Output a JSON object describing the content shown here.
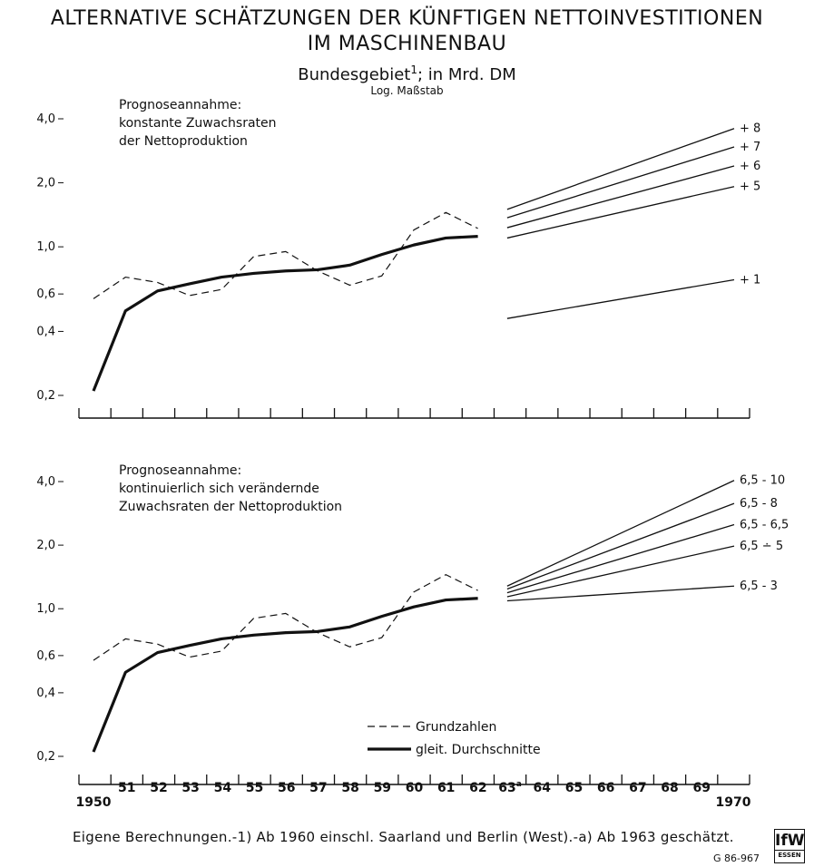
{
  "title": {
    "line1": "ALTERNATIVE SCHÄTZUNGEN DER KÜNFTIGEN NETTOINVESTITIONEN",
    "line2": "IM MASCHINENBAU",
    "subtitle_main": "Bundesgebiet",
    "subtitle_sup": "1",
    "subtitle_rest": "; in Mrd. DM",
    "scale_note": "Log. Maßstab"
  },
  "footnote": "Eigene Berechnungen.-1) Ab 1960 einschl. Saarland und Berlin (West).-a) Ab 1963 geschätzt.",
  "code": "G 86-967",
  "logo": {
    "main": "IfW",
    "sub": "ESSEN"
  },
  "chart_data": [
    {
      "type": "line",
      "scale": "log",
      "annotation": [
        "Prognoseannahme:",
        "konstante Zuwachsraten",
        "der Nettoproduktion"
      ],
      "y_ticks": [
        {
          "v": 0.2,
          "label": "0,2"
        },
        {
          "v": 0.4,
          "label": "0,4"
        },
        {
          "v": 0.6,
          "label": "0,6"
        },
        {
          "v": 1.0,
          "label": "1,0"
        },
        {
          "v": 2.0,
          "label": "2,0"
        },
        {
          "v": 4.0,
          "label": "4,0"
        }
      ],
      "ylim": [
        0.16,
        4.2
      ],
      "x_ticks": [],
      "grundzahlen": [
        [
          1950,
          0.57
        ],
        [
          1951,
          0.72
        ],
        [
          1952,
          0.68
        ],
        [
          1953,
          0.59
        ],
        [
          1954,
          0.63
        ],
        [
          1955,
          0.9
        ],
        [
          1956,
          0.95
        ],
        [
          1957,
          0.77
        ],
        [
          1958,
          0.66
        ],
        [
          1959,
          0.73
        ],
        [
          1960,
          1.2
        ],
        [
          1961,
          1.45
        ],
        [
          1962,
          1.22
        ]
      ],
      "gleitende_durchschnitte": [
        [
          1950,
          0.21
        ],
        [
          1951,
          0.5
        ],
        [
          1952,
          0.62
        ],
        [
          1953,
          0.67
        ],
        [
          1954,
          0.72
        ],
        [
          1955,
          0.75
        ],
        [
          1956,
          0.77
        ],
        [
          1957,
          0.78
        ],
        [
          1958,
          0.82
        ],
        [
          1959,
          0.92
        ],
        [
          1960,
          1.02
        ],
        [
          1961,
          1.1
        ],
        [
          1962,
          1.12
        ]
      ],
      "projections": [
        {
          "label": "+ 8",
          "start": [
            1963,
            1.5
          ],
          "end": [
            1970,
            3.6
          ]
        },
        {
          "label": "+ 7",
          "start": [
            1963,
            1.37
          ],
          "end": [
            1970,
            2.95
          ]
        },
        {
          "label": "+ 6",
          "start": [
            1963,
            1.23
          ],
          "end": [
            1970,
            2.4
          ]
        },
        {
          "label": "+ 5",
          "start": [
            1963,
            1.1
          ],
          "end": [
            1970,
            1.92
          ]
        },
        {
          "label": "+ 1",
          "start": [
            1963,
            0.46
          ],
          "end": [
            1970,
            0.7
          ]
        }
      ]
    },
    {
      "type": "line",
      "scale": "log",
      "annotation": [
        "Prognoseannahme:",
        "kontinuierlich sich verändernde",
        "Zuwachsraten der Nettoproduktion"
      ],
      "y_ticks": [
        {
          "v": 0.2,
          "label": "0,2"
        },
        {
          "v": 0.4,
          "label": "0,4"
        },
        {
          "v": 0.6,
          "label": "0,6"
        },
        {
          "v": 1.0,
          "label": "1,0"
        },
        {
          "v": 2.0,
          "label": "2,0"
        },
        {
          "v": 4.0,
          "label": "4,0"
        }
      ],
      "ylim": [
        0.16,
        4.2
      ],
      "x_ticks": [
        {
          "label": "1950",
          "pos": 1950
        },
        {
          "label": "51",
          "pos": 1951
        },
        {
          "label": "52",
          "pos": 1952
        },
        {
          "label": "53",
          "pos": 1953
        },
        {
          "label": "54",
          "pos": 1954
        },
        {
          "label": "55",
          "pos": 1955
        },
        {
          "label": "56",
          "pos": 1956
        },
        {
          "label": "57",
          "pos": 1957
        },
        {
          "label": "58",
          "pos": 1958
        },
        {
          "label": "59",
          "pos": 1959
        },
        {
          "label": "60",
          "pos": 1960
        },
        {
          "label": "61",
          "pos": 1961
        },
        {
          "label": "62",
          "pos": 1962
        },
        {
          "label": "63",
          "sup": "a",
          "pos": 1963
        },
        {
          "label": "64",
          "pos": 1964
        },
        {
          "label": "65",
          "pos": 1965
        },
        {
          "label": "66",
          "pos": 1966
        },
        {
          "label": "67",
          "pos": 1967
        },
        {
          "label": "68",
          "pos": 1968
        },
        {
          "label": "69",
          "pos": 1969
        },
        {
          "label": "1970",
          "pos": 1970
        }
      ],
      "grundzahlen": [
        [
          1950,
          0.57
        ],
        [
          1951,
          0.72
        ],
        [
          1952,
          0.68
        ],
        [
          1953,
          0.59
        ],
        [
          1954,
          0.63
        ],
        [
          1955,
          0.9
        ],
        [
          1956,
          0.95
        ],
        [
          1957,
          0.77
        ],
        [
          1958,
          0.66
        ],
        [
          1959,
          0.73
        ],
        [
          1960,
          1.2
        ],
        [
          1961,
          1.45
        ],
        [
          1962,
          1.22
        ]
      ],
      "gleitende_durchschnitte": [
        [
          1950,
          0.21
        ],
        [
          1951,
          0.5
        ],
        [
          1952,
          0.62
        ],
        [
          1953,
          0.67
        ],
        [
          1954,
          0.72
        ],
        [
          1955,
          0.75
        ],
        [
          1956,
          0.77
        ],
        [
          1957,
          0.78
        ],
        [
          1958,
          0.82
        ],
        [
          1959,
          0.92
        ],
        [
          1960,
          1.02
        ],
        [
          1961,
          1.1
        ],
        [
          1962,
          1.12
        ]
      ],
      "projections": [
        {
          "label": "6,5 - 10",
          "start": [
            1963,
            1.28
          ],
          "end": [
            1970,
            4.05
          ]
        },
        {
          "label": "6,5 - 8",
          "start": [
            1963,
            1.24
          ],
          "end": [
            1970,
            3.15
          ]
        },
        {
          "label": "6,5 - 6,5",
          "start": [
            1963,
            1.19
          ],
          "end": [
            1970,
            2.5
          ]
        },
        {
          "label": "6,5 ∸ 5",
          "start": [
            1963,
            1.14
          ],
          "end": [
            1970,
            1.98
          ]
        },
        {
          "label": "6,5 - 3",
          "start": [
            1963,
            1.09
          ],
          "end": [
            1970,
            1.28
          ]
        }
      ],
      "legend": {
        "dashed": "Grundzahlen",
        "solid": "gleit. Durchschnitte"
      }
    }
  ]
}
